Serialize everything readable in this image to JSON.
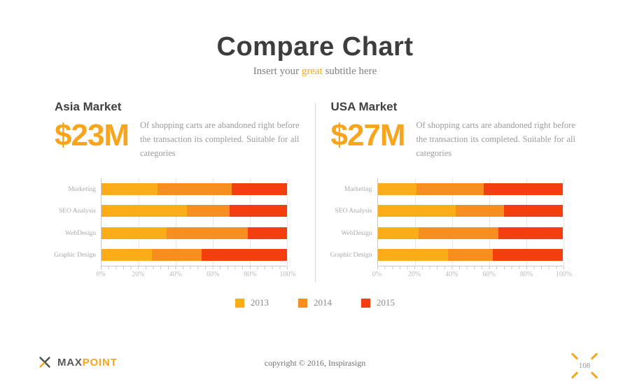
{
  "slide": {
    "title": "Compare Chart",
    "subtitle_pre": "Insert your ",
    "subtitle_highlight": "great",
    "subtitle_post": " subtitle here"
  },
  "sections": [
    {
      "heading": "Asia Market",
      "big_value": "$23M",
      "description": "Of shopping carts are abandoned right before the transaction its completed. Suitable for all categories"
    },
    {
      "heading": "USA Market",
      "big_value": "$27M",
      "description": "Of shopping carts are abandoned right before the transaction its completed. Suitable for all categories"
    }
  ],
  "chart_data": [
    {
      "type": "bar",
      "orientation": "horizontal-stacked",
      "title": "Asia Market",
      "categories": [
        "Marketing",
        "SEO Analysis",
        "WebDesign",
        "Graphic Design"
      ],
      "series": [
        {
          "name": "2013",
          "color": "#fbad18",
          "values": [
            30,
            46,
            35,
            27
          ]
        },
        {
          "name": "2014",
          "color": "#f78e1e",
          "values": [
            40,
            23,
            44,
            27
          ]
        },
        {
          "name": "2015",
          "color": "#f43e0e",
          "values": [
            30,
            31,
            21,
            46
          ]
        }
      ],
      "x_ticks": [
        "0%",
        "20%",
        "40%",
        "60%",
        "80%",
        "100%"
      ],
      "xlim": [
        0,
        100
      ],
      "grid": true,
      "unit": "percent"
    },
    {
      "type": "bar",
      "orientation": "horizontal-stacked",
      "title": "USA Market",
      "categories": [
        "Marketing",
        "SEO Analysis",
        "WebDesign",
        "Graphic Design"
      ],
      "series": [
        {
          "name": "2013",
          "color": "#fbad18",
          "values": [
            21,
            42,
            22,
            38
          ]
        },
        {
          "name": "2014",
          "color": "#f78e1e",
          "values": [
            36,
            26,
            43,
            24
          ]
        },
        {
          "name": "2015",
          "color": "#f43e0e",
          "values": [
            43,
            32,
            35,
            38
          ]
        }
      ],
      "x_ticks": [
        "0%",
        "20%",
        "40%",
        "60%",
        "80%",
        "100%"
      ],
      "xlim": [
        0,
        100
      ],
      "grid": true,
      "unit": "percent"
    }
  ],
  "legend": {
    "position": "bottom-center",
    "items": [
      {
        "label": "2013",
        "color": "#fbad18"
      },
      {
        "label": "2014",
        "color": "#f78e1e"
      },
      {
        "label": "2015",
        "color": "#f43e0e"
      }
    ]
  },
  "footer": {
    "logo_max": "MAX",
    "logo_point": "POINT",
    "copyright": "copyright © 2016, Inspirasign",
    "page_number": "108"
  },
  "colors": {
    "accent_orange": "#f9a51c",
    "title_dark": "#3d3d3d",
    "body_gray": "#9a9b9d",
    "axis_gray": "#c6c8ca"
  }
}
